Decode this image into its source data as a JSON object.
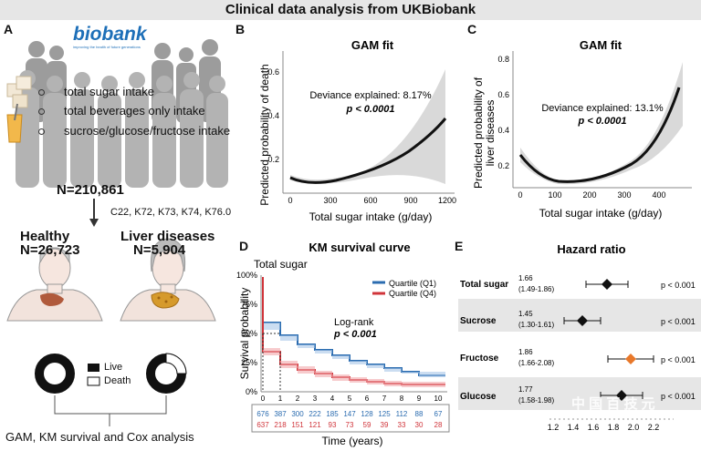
{
  "title": "Clinical data analysis from UKBiobank",
  "panels": {
    "a": "A",
    "b": "B",
    "c": "C",
    "d": "D",
    "e": "E"
  },
  "panel_a": {
    "logo_text": "biobank",
    "logo_tagline": "improving the health of future generations",
    "bullets": [
      "total sugar intake",
      "total beverages only intake",
      "sucrose/glucose/fructose intake"
    ],
    "n_total": "N=210,861",
    "codes": "C22, K72, K73, K74, K76.0",
    "healthy_label": "Healthy",
    "healthy_n": "N=26,723",
    "liver_label": "Liver diseases",
    "liver_n": "N=5,904",
    "legend_live": "Live",
    "legend_death": "Death",
    "footer": "GAM, KM survival and Cox analysis"
  },
  "panel_b": {
    "title": "GAM fit",
    "ylabel": "Predicted probability of death",
    "xlabel": "Total sugar intake (g/day)",
    "deviance": "Deviance explained: 8.17%",
    "pvalue": "p < 0.0001",
    "yticks": [
      "0.2",
      "0.4",
      "0.6"
    ],
    "xticks": [
      "0",
      "300",
      "600",
      "900",
      "1200"
    ]
  },
  "panel_c": {
    "title": "GAM fit",
    "ylabel_1": "Predicted probability of",
    "ylabel_2": "liver diseases",
    "xlabel": "Total sugar intake (g/day)",
    "deviance": "Deviance explained: 13.1%",
    "pvalue": "p < 0.0001",
    "yticks": [
      "0.2",
      "0.4",
      "0.6",
      "0.8"
    ],
    "xticks": [
      "0",
      "100",
      "200",
      "300",
      "400"
    ]
  },
  "panel_d": {
    "title": "KM survival curve",
    "subtitle": "Total sugar",
    "ylabel": "Survival probability",
    "xlabel": "Time (years)",
    "yticks": [
      "0%",
      "25%",
      "50%",
      "75%",
      "100%"
    ],
    "xticks": [
      "0",
      "1",
      "2",
      "3",
      "4",
      "5",
      "6",
      "7",
      "8",
      "9",
      "10"
    ],
    "legend_q1": "Quartile (Q1)",
    "legend_q4": "Quartile (Q4)",
    "logrank": "Log-rank",
    "pvalue": "p < 0.001",
    "risk_q1": [
      "676",
      "387",
      "300",
      "222",
      "185",
      "147",
      "128",
      "125",
      "112",
      "88",
      "67"
    ],
    "risk_q4": [
      "637",
      "218",
      "151",
      "121",
      "93",
      "73",
      "59",
      "39",
      "33",
      "30",
      "28"
    ],
    "colors": {
      "q1": "#2b6cb0",
      "q4": "#d0343a"
    }
  },
  "panel_e": {
    "title": "Hazard ratio",
    "rows": [
      {
        "label": "Total sugar",
        "hr": "1.66",
        "ci": "(1.49-1.86)",
        "p": "p < 0.001"
      },
      {
        "label": "Sucrose",
        "hr": "1.45",
        "ci": "(1.30-1.61)",
        "p": "p < 0.001"
      },
      {
        "label": "Fructose",
        "hr": "1.86",
        "ci": "(1.66-2.08)",
        "p": "p < 0.001"
      },
      {
        "label": "Glucose",
        "hr": "1.77",
        "ci": "(1.58-1.98)",
        "p": "p < 0.001"
      }
    ],
    "xticks": [
      "1.2",
      "1.4",
      "1.6",
      "1.8",
      "2.0",
      "2.2"
    ],
    "fructose_color": "#e8782a"
  },
  "watermark": "中 国 百 技 元"
}
